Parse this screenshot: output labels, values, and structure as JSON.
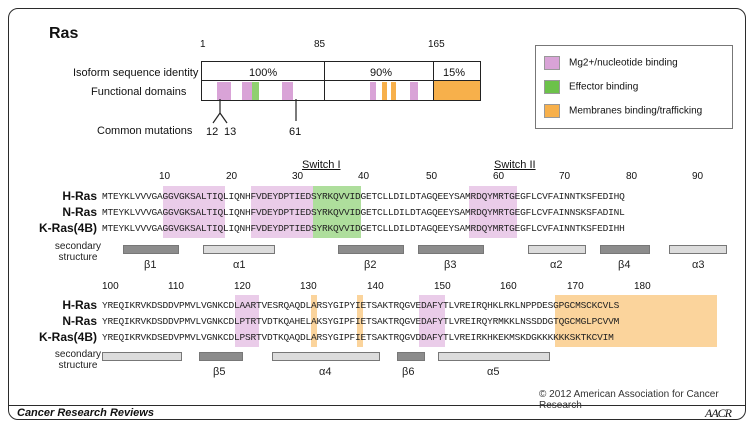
{
  "title": "Ras",
  "identity": {
    "label": "Isoform sequence identity",
    "positions": [
      "1",
      "85",
      "165"
    ],
    "pct": [
      "100%",
      "90%",
      "15%"
    ]
  },
  "domains_label": "Functional domains",
  "mutations": {
    "label": "Common mutations",
    "sites": [
      "12",
      "13",
      "61"
    ]
  },
  "legend": [
    {
      "label": "Mg2+/nucleotide binding",
      "color": "#d9a3d7"
    },
    {
      "label": "Effector binding",
      "color": "#6cc24a"
    },
    {
      "label": "Membranes binding/trafficking",
      "color": "#f7b04b"
    }
  ],
  "switch_labels": [
    "Switch I",
    "Switch II"
  ],
  "block1": {
    "ticks": [
      "10",
      "20",
      "30",
      "40",
      "50",
      "60",
      "70",
      "80",
      "90"
    ],
    "rows": [
      {
        "name": "H-Ras",
        "seq": "MTEYKLVVVGAGGVGKSALTIQLIQNHFVDEYDPTIEDSYRKQVVIDGETCLLDILDTAGQEEYSAMRDQYMRTGEGFLCVFAINNTKSFEDIHQ"
      },
      {
        "name": "N-Ras",
        "seq": "MTEYKLVVVGAGGVGKSALTIQLIQNHFVDEYDPTIEDSYRKQVVIDGETCLLDILDTAGQEEYSAMRDQYMRTGEGFLCVFAINNSKSFADINL"
      },
      {
        "name": "K-Ras(4B)",
        "seq": "MTEYKLVVVGAGGVGKSALTIQLIQNHFVDEYDPTIEDSYRKQVVIDGETCLLDILDTAGQEEYSAMRDQYMRTGEGFLCVFAINNTKSFEDIHH"
      }
    ],
    "ss_label": [
      "secondary",
      "structure"
    ],
    "ss": [
      "β1",
      "α1",
      "β2",
      "β3",
      "α2",
      "β4",
      "α3"
    ]
  },
  "block2": {
    "ticks": [
      "100",
      "110",
      "120",
      "130",
      "140",
      "150",
      "160",
      "170",
      "180"
    ],
    "rows": [
      {
        "name": "H-Ras",
        "seq": "YREQIKRVKDSDDVPMVLVGNKCDLAARTVESRQAQDLARSYGIPYIETSAKTRQGVEDAFYTLVREIRQHKLRKLNPPDESGPGCMSCKCVLS"
      },
      {
        "name": "N-Ras",
        "seq": "YREQIKRVKDSDDVPMVLVGNKCDLPTRTVDTKQAHELAKSYGIPFIETSAKTRQGVEDAFYTLVREIRQYRMKKLNSSDDGTQGCMGLPCVVM"
      },
      {
        "name": "K-Ras(4B)",
        "seq": "YREQIKRVKDSEDVPMVLVGNKCDLPSRTVDTKQAQDLARSYGIPFIETSAKTRQGVDDAFYTLVREIRKHKEKMSKDGKKKKKKSKTKCVIM"
      }
    ],
    "ss_label": [
      "secondary",
      "structure"
    ],
    "ss": [
      "β5",
      "α4",
      "β6",
      "α5"
    ]
  },
  "copyright": "© 2012 American Association for Cancer Research",
  "footer_title": "Cancer Research Reviews",
  "logo_text": "AACR"
}
